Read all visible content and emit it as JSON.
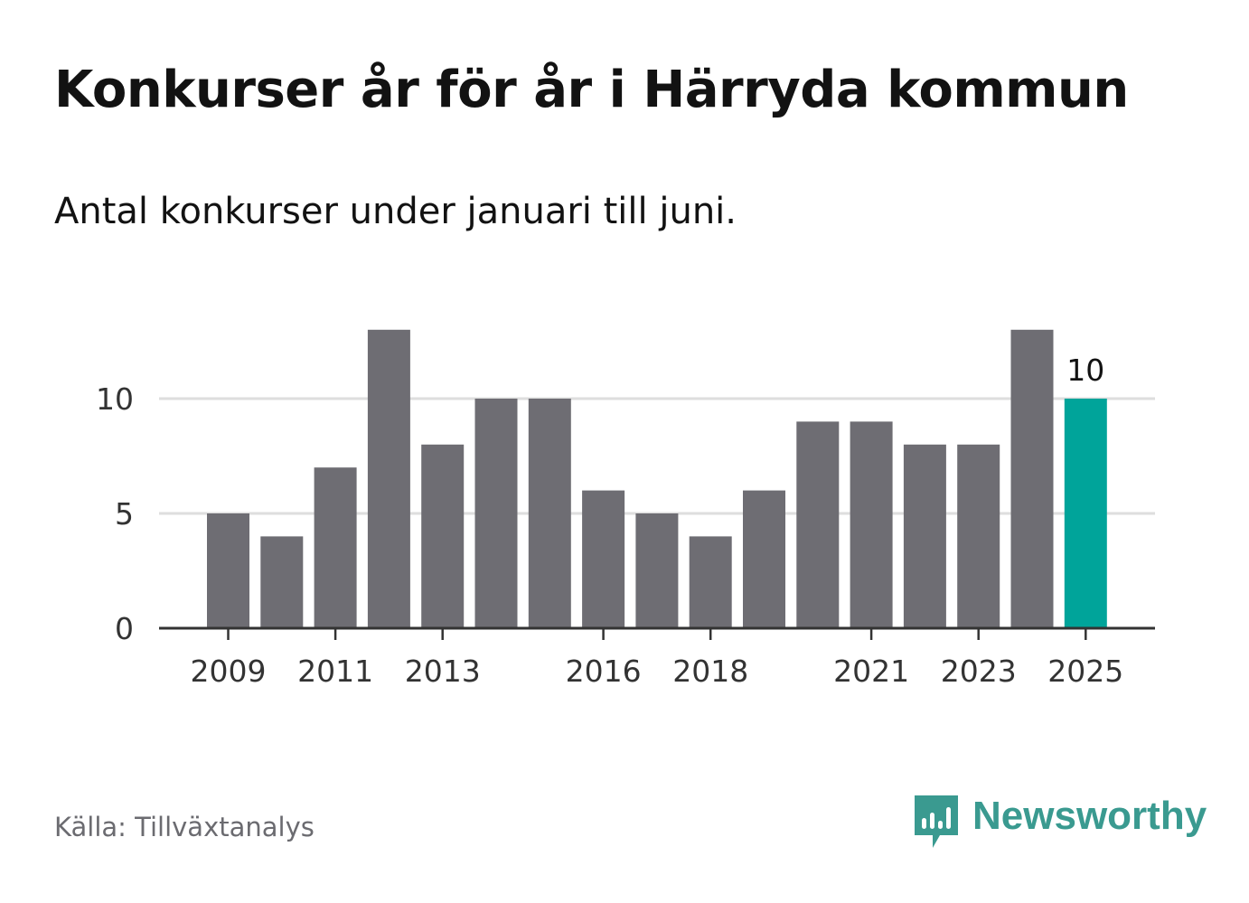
{
  "title": "Konkurser år för år i Härryda kommun",
  "subtitle": "Antal konkurser under januari till juni.",
  "source": "Källa: Tillväxtanalys",
  "brand": {
    "name": "Newsworthy",
    "color": "#3a9a90",
    "icon": "newsworthy-logo-icon"
  },
  "colors": {
    "bar": "#6e6d73",
    "highlight": "#00a49a",
    "grid": "#dedede",
    "axis": "#333333",
    "tick_text": "#333333"
  },
  "chart_data": {
    "type": "bar",
    "categories": [
      "2009",
      "2010",
      "2011",
      "2012",
      "2013",
      "2014",
      "2015",
      "2016",
      "2017",
      "2018",
      "2019",
      "2020",
      "2021",
      "2022",
      "2023",
      "2024",
      "2025"
    ],
    "values": [
      5,
      4,
      7,
      13,
      8,
      10,
      10,
      6,
      5,
      4,
      6,
      9,
      9,
      8,
      8,
      13,
      10
    ],
    "x_tick_labels": [
      "2009",
      "2011",
      "2013",
      "2016",
      "2018",
      "2021",
      "2023",
      "2025"
    ],
    "y_ticks": [
      0,
      5,
      10
    ],
    "ylim": [
      0,
      13
    ],
    "grid": true,
    "highlight_category": "2025",
    "annotations": [
      {
        "category": "2025",
        "text": "10"
      }
    ],
    "xlabel": "",
    "ylabel": ""
  }
}
